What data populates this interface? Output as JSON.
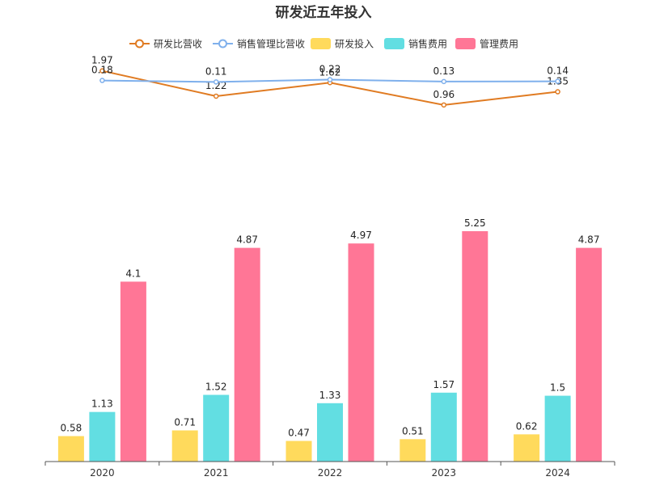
{
  "chart_data": {
    "type": "bar",
    "title": "研发近五年投入",
    "categories": [
      "2020",
      "2021",
      "2022",
      "2023",
      "2024"
    ],
    "legend": {
      "position": "top",
      "items": [
        {
          "name": "研发比营收",
          "marker": "line",
          "color": "#E07B22"
        },
        {
          "name": "销售管理比营收",
          "marker": "line",
          "color": "#7FB0EC"
        },
        {
          "name": "研发投入",
          "marker": "box",
          "color": "#FFDA5C"
        },
        {
          "name": "销售费用",
          "marker": "box",
          "color": "#62DEE2"
        },
        {
          "name": "管理费用",
          "marker": "box",
          "color": "#FF7696"
        }
      ]
    },
    "line_series": [
      {
        "name": "研发比营收",
        "color": "#E07B22",
        "values": [
          1.97,
          1.22,
          1.62,
          0.96,
          1.35
        ],
        "labels": [
          "1.97",
          "1.22",
          "1.62",
          "0.96",
          "1.35"
        ],
        "range": [
          0,
          2.2
        ]
      },
      {
        "name": "销售管理比营收",
        "color": "#7FB0EC",
        "values": [
          0.18,
          0.11,
          0.22,
          0.13,
          0.14
        ],
        "labels": [
          "0.18",
          "0.11",
          "0.22",
          "0.13",
          "0.14"
        ],
        "range": [
          -2.5,
          1
        ]
      }
    ],
    "bar_series": [
      {
        "name": "研发投入",
        "color": "#FFDA5C",
        "values": [
          0.58,
          0.71,
          0.47,
          0.51,
          0.62
        ],
        "labels": [
          "0.58",
          "0.71",
          "0.47",
          "0.51",
          "0.62"
        ]
      },
      {
        "name": "销售费用",
        "color": "#62DEE2",
        "values": [
          1.13,
          1.52,
          1.33,
          1.57,
          1.5
        ],
        "labels": [
          "1.13",
          "1.52",
          "1.33",
          "1.57",
          "1.5"
        ]
      },
      {
        "name": "管理费用",
        "color": "#FF7696",
        "values": [
          4.1,
          4.87,
          4.97,
          5.25,
          4.87
        ],
        "labels": [
          "4.1",
          "4.87",
          "4.97",
          "5.25",
          "4.87"
        ]
      }
    ],
    "bar_ylim": [
      0,
      5.25
    ],
    "grid": false
  }
}
